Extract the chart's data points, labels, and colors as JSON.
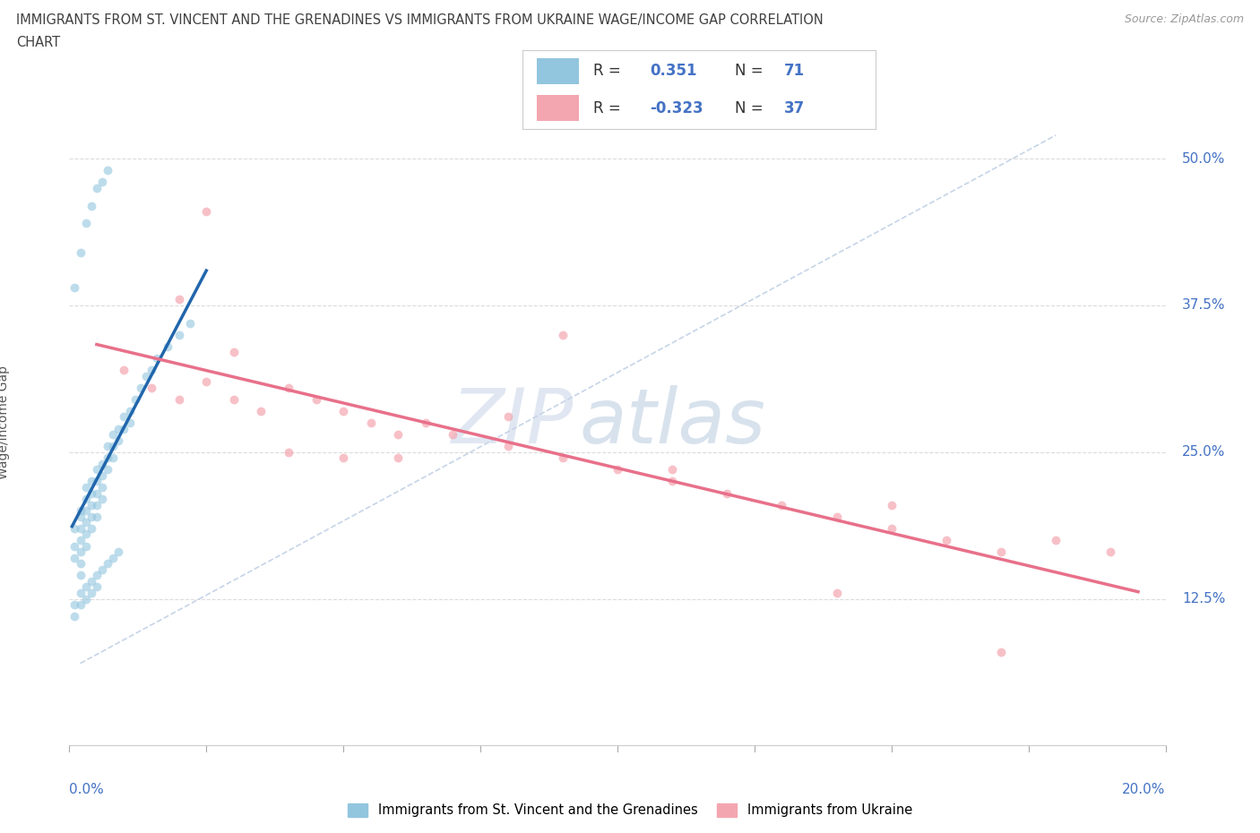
{
  "title_line1": "IMMIGRANTS FROM ST. VINCENT AND THE GRENADINES VS IMMIGRANTS FROM UKRAINE WAGE/INCOME GAP CORRELATION",
  "title_line2": "CHART",
  "source": "Source: ZipAtlas.com",
  "ylabel": "Wage/Income Gap",
  "yticks_pct": [
    12.5,
    25.0,
    37.5,
    50.0
  ],
  "xrange": [
    0.0,
    0.2
  ],
  "yrange": [
    0.0,
    0.55
  ],
  "watermark_1": "ZIP",
  "watermark_2": "atlas",
  "r1": 0.351,
  "n1": 71,
  "r2": -0.323,
  "n2": 37,
  "sv_color": "#92c5de",
  "uk_color": "#f4a6b0",
  "sv_line_color": "#2166ac",
  "uk_line_color": "#e8708a",
  "text_blue": "#4472c4",
  "grid_color": "#d8d8d8",
  "sv_x": [
    0.001,
    0.001,
    0.001,
    0.002,
    0.002,
    0.002,
    0.002,
    0.002,
    0.002,
    0.002,
    0.003,
    0.003,
    0.003,
    0.003,
    0.003,
    0.003,
    0.004,
    0.004,
    0.004,
    0.004,
    0.004,
    0.005,
    0.005,
    0.005,
    0.005,
    0.005,
    0.006,
    0.006,
    0.006,
    0.006,
    0.007,
    0.007,
    0.007,
    0.008,
    0.008,
    0.008,
    0.009,
    0.009,
    0.01,
    0.01,
    0.011,
    0.011,
    0.012,
    0.013,
    0.014,
    0.015,
    0.016,
    0.018,
    0.02,
    0.022,
    0.001,
    0.001,
    0.002,
    0.002,
    0.003,
    0.003,
    0.004,
    0.004,
    0.005,
    0.005,
    0.006,
    0.007,
    0.008,
    0.009,
    0.001,
    0.002,
    0.003,
    0.004,
    0.005,
    0.006,
    0.007
  ],
  "sv_y": [
    0.185,
    0.17,
    0.16,
    0.2,
    0.195,
    0.185,
    0.175,
    0.165,
    0.155,
    0.145,
    0.22,
    0.21,
    0.2,
    0.19,
    0.18,
    0.17,
    0.225,
    0.215,
    0.205,
    0.195,
    0.185,
    0.235,
    0.225,
    0.215,
    0.205,
    0.195,
    0.24,
    0.23,
    0.22,
    0.21,
    0.255,
    0.245,
    0.235,
    0.265,
    0.255,
    0.245,
    0.27,
    0.26,
    0.28,
    0.27,
    0.285,
    0.275,
    0.295,
    0.305,
    0.315,
    0.32,
    0.33,
    0.34,
    0.35,
    0.36,
    0.12,
    0.11,
    0.13,
    0.12,
    0.135,
    0.125,
    0.14,
    0.13,
    0.145,
    0.135,
    0.15,
    0.155,
    0.16,
    0.165,
    0.39,
    0.42,
    0.445,
    0.46,
    0.475,
    0.48,
    0.49
  ],
  "uk_x": [
    0.01,
    0.015,
    0.02,
    0.025,
    0.03,
    0.035,
    0.04,
    0.045,
    0.05,
    0.055,
    0.06,
    0.065,
    0.07,
    0.08,
    0.09,
    0.1,
    0.11,
    0.12,
    0.13,
    0.14,
    0.15,
    0.16,
    0.17,
    0.18,
    0.19,
    0.02,
    0.03,
    0.04,
    0.06,
    0.08,
    0.11,
    0.15,
    0.025,
    0.05,
    0.09,
    0.14,
    0.17
  ],
  "uk_y": [
    0.32,
    0.305,
    0.295,
    0.31,
    0.295,
    0.285,
    0.305,
    0.295,
    0.285,
    0.275,
    0.265,
    0.275,
    0.265,
    0.255,
    0.245,
    0.235,
    0.225,
    0.215,
    0.205,
    0.195,
    0.185,
    0.175,
    0.165,
    0.175,
    0.165,
    0.38,
    0.335,
    0.25,
    0.245,
    0.28,
    0.235,
    0.205,
    0.455,
    0.245,
    0.35,
    0.13,
    0.08
  ]
}
